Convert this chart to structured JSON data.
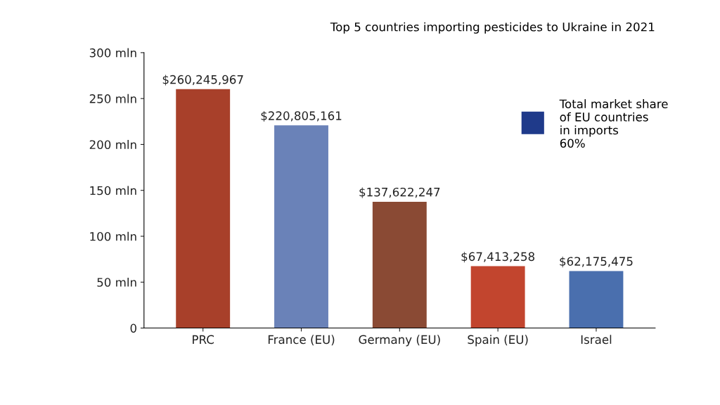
{
  "chart_data": {
    "type": "bar",
    "title": "Top 5 countries importing pesticides to Ukraine in 2021",
    "categories": [
      "PRC",
      "France (EU)",
      "Germany (EU)",
      "Spain (EU)",
      "Israel"
    ],
    "values": [
      260.245967,
      220.805161,
      137.622247,
      67.413258,
      62.175475
    ],
    "colors": [
      "#a8402a",
      "#6a82b8",
      "#8a4a34",
      "#c2452e",
      "#4a6fae"
    ],
    "ylim": [
      0,
      300
    ],
    "yticks": [
      0,
      {
        "value": 50,
        "label": "50 mln"
      },
      {
        "value": 100,
        "label": "100 mln"
      },
      {
        "value": 150,
        "label": "150 mln"
      },
      {
        "value": 200,
        "label": "200 mln"
      },
      {
        "value": 250,
        "label": "250 mln"
      },
      {
        "value": 300,
        "label": "300 mln"
      }
    ],
    "annotations": [
      {
        "text": "$260,245,967",
        "x": "PRC",
        "y": 260.245967
      },
      {
        "text": "$220,805,161",
        "x": "France (EU)",
        "y": 220.805161
      },
      {
        "text": "$137,622,247",
        "x": "Germany (EU)",
        "y": 137.622247
      },
      {
        "text": "$67,413,258",
        "x": "Spain (EU)",
        "y": 67.413258
      },
      {
        "text": "$62,175,475",
        "x": "Israel",
        "y": 62.175475
      },
      "Total market share\nof EU countries\nin imports\n60%"
    ],
    "grid": false,
    "legend": false
  }
}
